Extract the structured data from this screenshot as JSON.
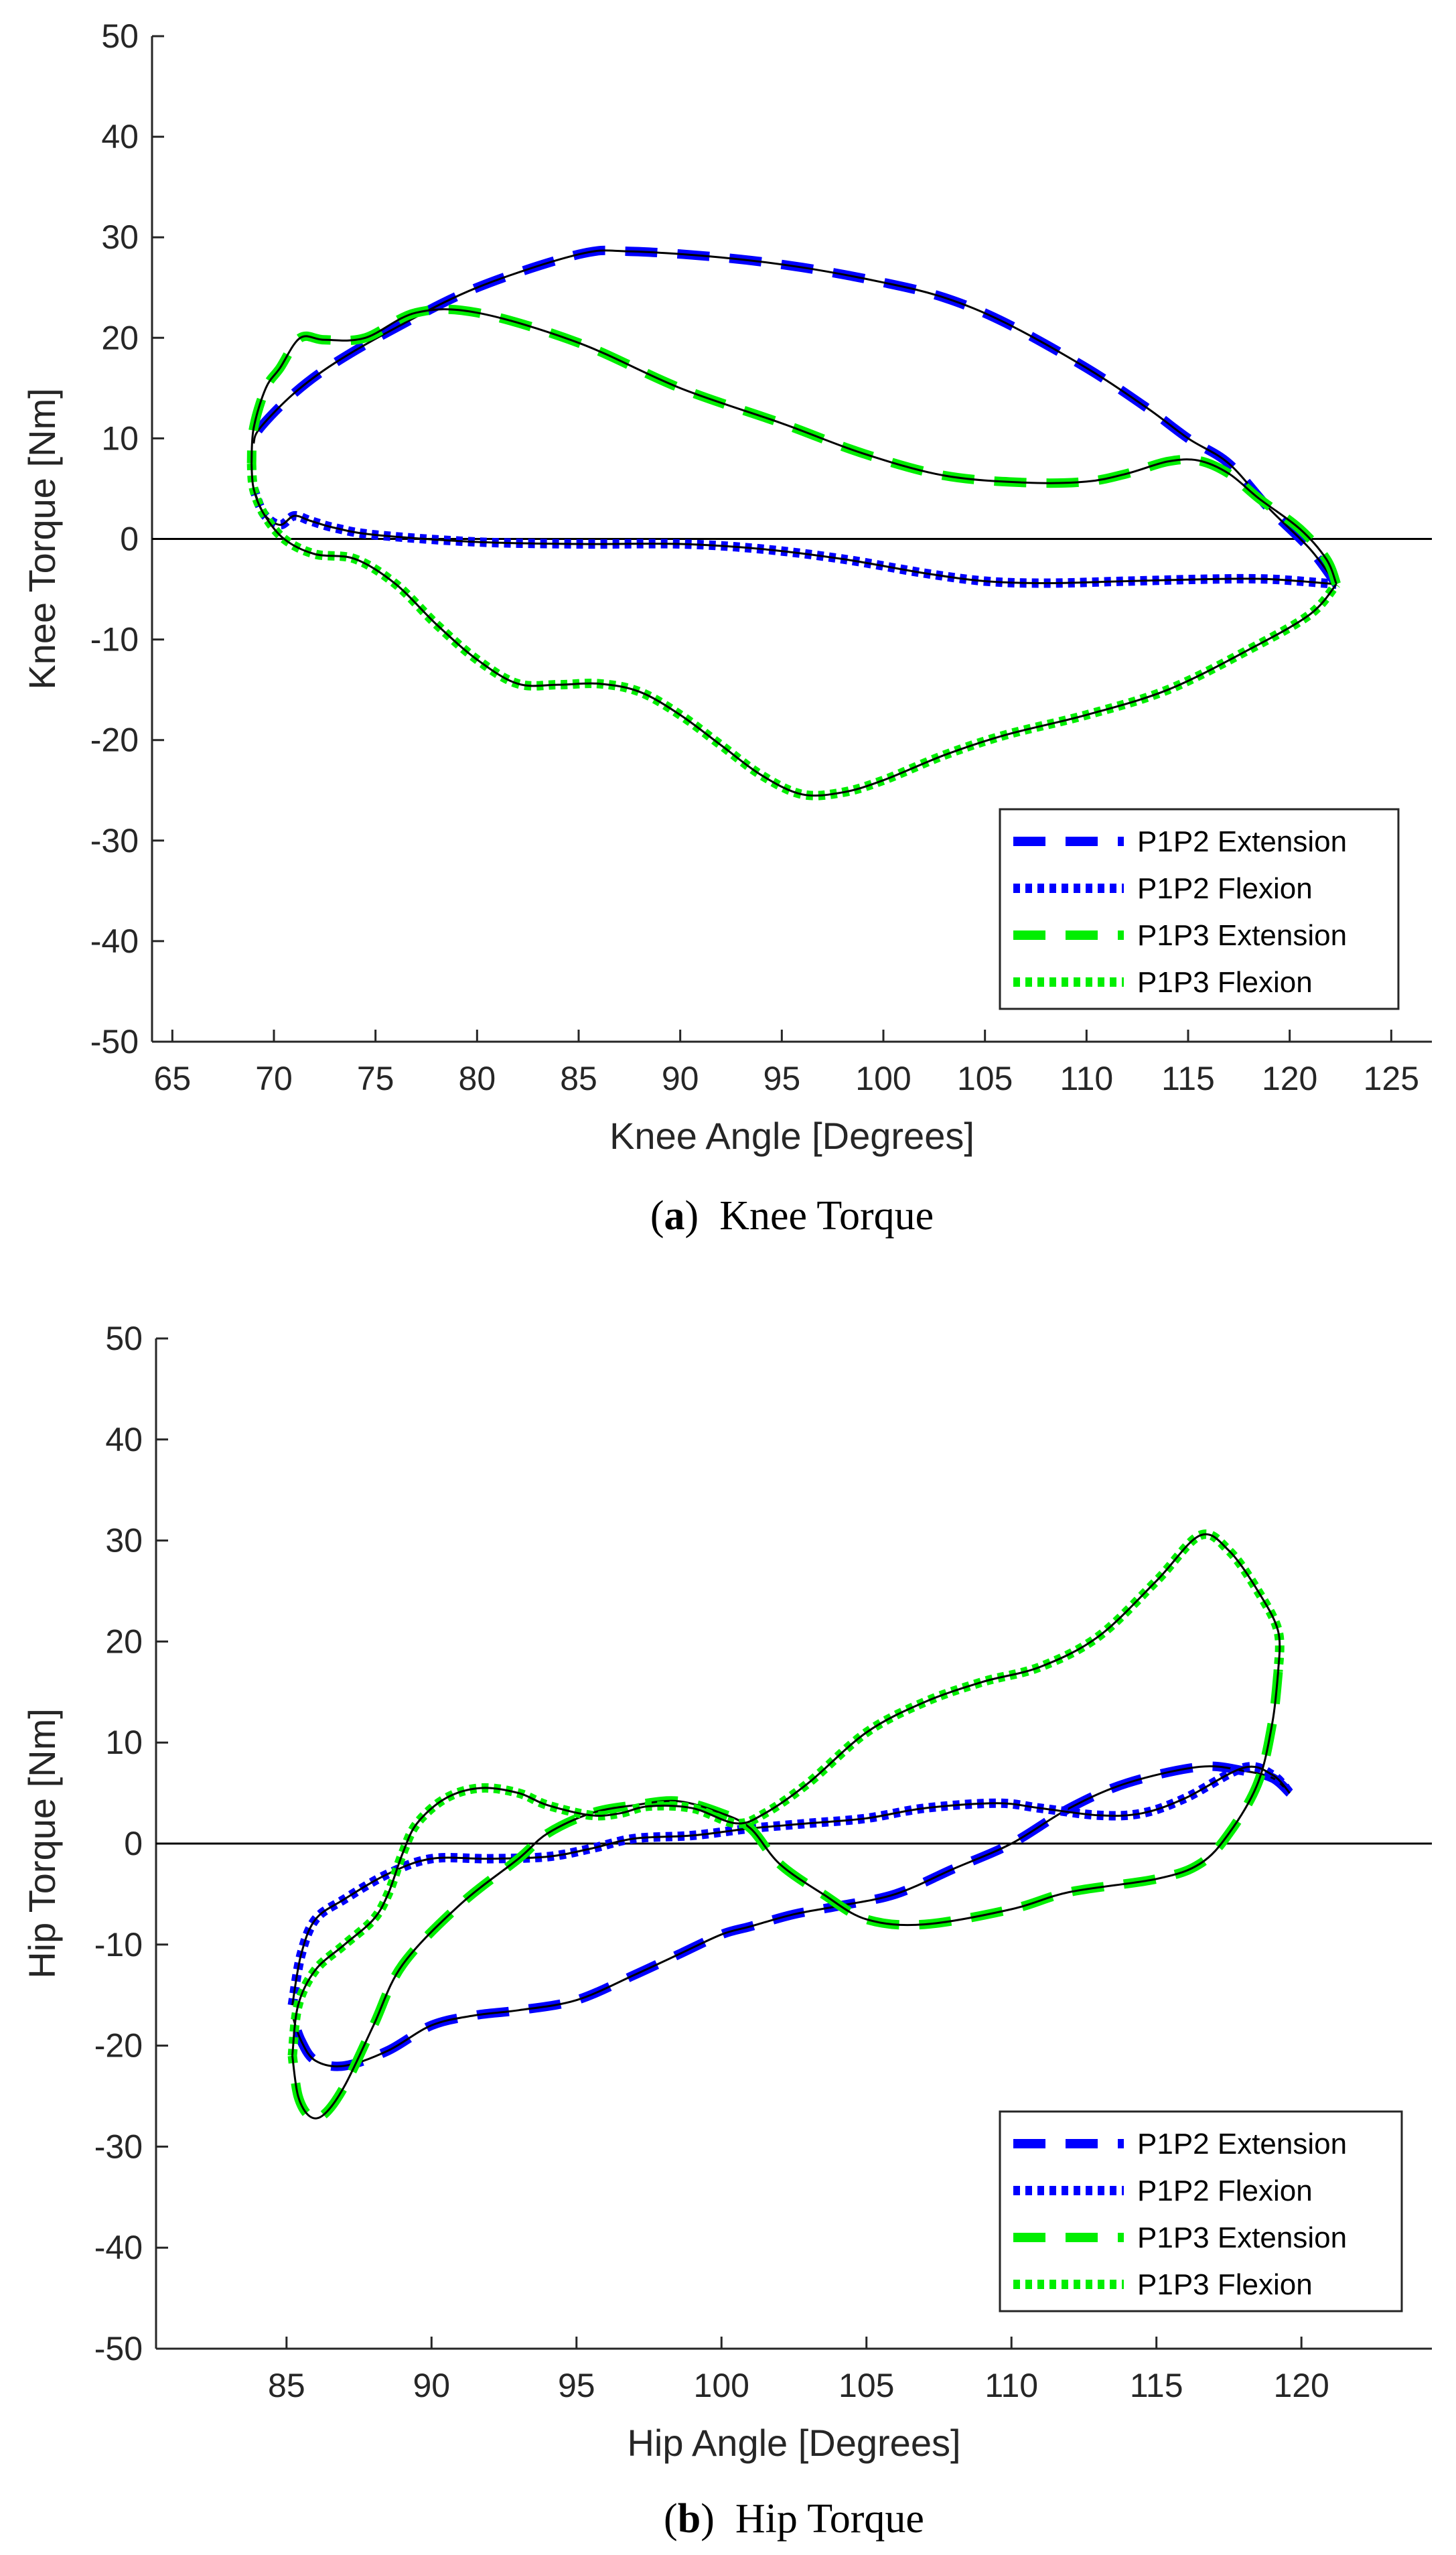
{
  "chart_data": [
    {
      "type": "line",
      "id": "knee",
      "caption_letter": "a",
      "caption_text": "Knee Torque",
      "xlabel": "Knee Angle [Degrees]",
      "ylabel": "Knee Torque [Nm]",
      "xlim": [
        64,
        127
      ],
      "ylim": [
        -50,
        50
      ],
      "xticks": [
        65,
        70,
        75,
        80,
        85,
        90,
        95,
        100,
        105,
        110,
        115,
        120,
        125
      ],
      "yticks": [
        -50,
        -40,
        -30,
        -20,
        -10,
        0,
        10,
        20,
        30,
        40,
        50
      ],
      "zero_line": true,
      "legend_position": "bottom-right",
      "legend": [
        "P1P2 Extension",
        "P1P2 Flexion",
        "P1P3 Extension",
        "P1P3 Flexion"
      ],
      "series": [
        {
          "name": "P1P2 Extension",
          "color": "#0000ff",
          "style": "dashed",
          "points": [
            [
              122.3,
              -4.5
            ],
            [
              121,
              -1
            ],
            [
              119,
              3
            ],
            [
              117,
              7.5
            ],
            [
              115,
              10
            ],
            [
              113,
              13
            ],
            [
              110,
              17
            ],
            [
              106,
              21.5
            ],
            [
              103,
              24
            ],
            [
              100,
              25.5
            ],
            [
              96,
              27
            ],
            [
              92,
              28
            ],
            [
              87.5,
              28.6
            ],
            [
              85,
              28.3
            ],
            [
              80,
              25
            ],
            [
              76,
              21
            ],
            [
              73,
              17.5
            ],
            [
              71,
              14.5
            ],
            [
              69.3,
              11
            ],
            [
              69,
              9.5
            ]
          ]
        },
        {
          "name": "P1P2 Flexion",
          "color": "#0000ff",
          "style": "dotted",
          "points": [
            [
              69,
              5
            ],
            [
              69.5,
              2.5
            ],
            [
              70.3,
              1.4
            ],
            [
              71,
              2.3
            ],
            [
              71.8,
              1.8
            ],
            [
              73,
              1.1
            ],
            [
              75,
              0.4
            ],
            [
              80,
              -0.3
            ],
            [
              85,
              -0.5
            ],
            [
              90,
              -0.5
            ],
            [
              94,
              -1
            ],
            [
              98,
              -2
            ],
            [
              102,
              -3.4
            ],
            [
              105,
              -4.2
            ],
            [
              108,
              -4.4
            ],
            [
              112,
              -4.2
            ],
            [
              116,
              -4
            ],
            [
              119,
              -4
            ],
            [
              122.3,
              -4.5
            ]
          ]
        },
        {
          "name": "P1P3 Extension",
          "color": "#00ee00",
          "style": "dashed",
          "points": [
            [
              122.3,
              -4.5
            ],
            [
              121.8,
              -2
            ],
            [
              120.5,
              1
            ],
            [
              118.5,
              4
            ],
            [
              117,
              6.5
            ],
            [
              115.5,
              7.8
            ],
            [
              114,
              7.7
            ],
            [
              112,
              6.5
            ],
            [
              110,
              5.7
            ],
            [
              107,
              5.6
            ],
            [
              103,
              6.3
            ],
            [
              99,
              8.5
            ],
            [
              95,
              11.5
            ],
            [
              90,
              15
            ],
            [
              85,
              19.5
            ],
            [
              80,
              22.5
            ],
            [
              77,
              22.5
            ],
            [
              74.5,
              20
            ],
            [
              72.5,
              19.8
            ],
            [
              71.3,
              20
            ],
            [
              70.3,
              17
            ],
            [
              69.6,
              15
            ],
            [
              69,
              11
            ],
            [
              68.9,
              7.5
            ]
          ]
        },
        {
          "name": "P1P3 Flexion",
          "color": "#00ee00",
          "style": "dotted",
          "points": [
            [
              68.9,
              7.5
            ],
            [
              69,
              5
            ],
            [
              69.5,
              2.5
            ],
            [
              70.5,
              0
            ],
            [
              72,
              -1.5
            ],
            [
              74,
              -2
            ],
            [
              76,
              -4.5
            ],
            [
              78,
              -8.5
            ],
            [
              80,
              -12
            ],
            [
              82,
              -14.4
            ],
            [
              84,
              -14.5
            ],
            [
              86,
              -14.4
            ],
            [
              88,
              -15.2
            ],
            [
              90,
              -17.5
            ],
            [
              92,
              -20.5
            ],
            [
              94,
              -23.5
            ],
            [
              96,
              -25.4
            ],
            [
              98,
              -25.2
            ],
            [
              100,
              -24
            ],
            [
              103,
              -21.5
            ],
            [
              106,
              -19.5
            ],
            [
              110,
              -17.5
            ],
            [
              114,
              -15
            ],
            [
              118,
              -11
            ],
            [
              121,
              -7.5
            ],
            [
              122.3,
              -4.5
            ]
          ]
        }
      ]
    },
    {
      "type": "line",
      "id": "hip",
      "caption_letter": "b",
      "caption_text": "Hip Torque",
      "xlabel": "Hip Angle [Degrees]",
      "ylabel": "Hip Torque [Nm]",
      "xlim": [
        80.5,
        124.5
      ],
      "ylim": [
        -50,
        50
      ],
      "xticks": [
        85,
        90,
        95,
        100,
        105,
        110,
        115,
        120
      ],
      "yticks": [
        -50,
        -40,
        -30,
        -20,
        -10,
        0,
        10,
        20,
        30,
        40,
        50
      ],
      "zero_line": true,
      "legend_position": "bottom-right",
      "legend": [
        "P1P2 Extension",
        "P1P2 Flexion",
        "P1P3 Extension",
        "P1P3 Flexion"
      ],
      "series": [
        {
          "name": "P1P2 Extension",
          "color": "#0000ff",
          "style": "dashed",
          "points": [
            [
              119.6,
              5
            ],
            [
              119,
              6.5
            ],
            [
              118,
              7.2
            ],
            [
              116.5,
              7.6
            ],
            [
              114,
              6
            ],
            [
              112,
              3.5
            ],
            [
              110,
              0
            ],
            [
              108,
              -2.5
            ],
            [
              106,
              -5
            ],
            [
              104,
              -6.2
            ],
            [
              102.5,
              -7
            ],
            [
              101,
              -8.2
            ],
            [
              100,
              -9
            ],
            [
              98.5,
              -11
            ],
            [
              97,
              -13
            ],
            [
              95,
              -15.5
            ],
            [
              93,
              -16.5
            ],
            [
              91.5,
              -17
            ],
            [
              90,
              -18
            ],
            [
              88.5,
              -20.5
            ],
            [
              87,
              -22
            ],
            [
              86,
              -21.5
            ],
            [
              85.5,
              -19.5
            ],
            [
              85.2,
              -17
            ]
          ]
        },
        {
          "name": "P1P2 Flexion",
          "color": "#0000ff",
          "style": "dotted",
          "points": [
            [
              85.2,
              -16
            ],
            [
              85.5,
              -11
            ],
            [
              86,
              -7.5
            ],
            [
              87,
              -5.5
            ],
            [
              88.5,
              -3
            ],
            [
              90,
              -1.5
            ],
            [
              92,
              -1.5
            ],
            [
              94,
              -1.3
            ],
            [
              95.5,
              -0.5
            ],
            [
              97,
              0.5
            ],
            [
              99,
              0.8
            ],
            [
              101,
              1.5
            ],
            [
              103,
              2
            ],
            [
              105,
              2.5
            ],
            [
              107,
              3.5
            ],
            [
              109.5,
              4
            ],
            [
              111,
              3.5
            ],
            [
              113,
              2.8
            ],
            [
              114.5,
              3
            ],
            [
              116,
              4.5
            ],
            [
              118,
              7.5
            ],
            [
              119,
              6.8
            ],
            [
              119.6,
              5
            ]
          ]
        },
        {
          "name": "P1P3 Extension",
          "color": "#00ee00",
          "style": "dashed",
          "points": [
            [
              119.2,
              17
            ],
            [
              119,
              12
            ],
            [
              118.5,
              6
            ],
            [
              117.5,
              1
            ],
            [
              116.5,
              -2
            ],
            [
              115,
              -3.5
            ],
            [
              112,
              -4.8
            ],
            [
              110,
              -6.5
            ],
            [
              107,
              -8
            ],
            [
              105,
              -7.5
            ],
            [
              103.5,
              -5
            ],
            [
              102,
              -2
            ],
            [
              101,
              1.5
            ],
            [
              100,
              3
            ],
            [
              98.5,
              4.2
            ],
            [
              97,
              3.8
            ],
            [
              95.5,
              3
            ],
            [
              94,
              1
            ],
            [
              93,
              -1.5
            ],
            [
              91,
              -6
            ],
            [
              89,
              -12
            ],
            [
              88,
              -18
            ],
            [
              87,
              -24
            ],
            [
              86.3,
              -26.8
            ],
            [
              85.8,
              -27
            ],
            [
              85.4,
              -25
            ],
            [
              85.2,
              -21
            ]
          ]
        },
        {
          "name": "P1P3 Flexion",
          "color": "#00ee00",
          "style": "dotted",
          "points": [
            [
              85.2,
              -21
            ],
            [
              85.4,
              -16
            ],
            [
              86,
              -12.5
            ],
            [
              87,
              -10
            ],
            [
              88,
              -7.5
            ],
            [
              88.5,
              -5
            ],
            [
              89,
              -1
            ],
            [
              89.5,
              2
            ],
            [
              90.5,
              4.5
            ],
            [
              91.7,
              5.5
            ],
            [
              93,
              5
            ],
            [
              94,
              3.8
            ],
            [
              95.5,
              2.8
            ],
            [
              96.5,
              3
            ],
            [
              97.5,
              3.7
            ],
            [
              99,
              3.5
            ],
            [
              100.5,
              2
            ],
            [
              101.5,
              3
            ],
            [
              103,
              6
            ],
            [
              105,
              11
            ],
            [
              107,
              14
            ],
            [
              109,
              16
            ],
            [
              111,
              17.5
            ],
            [
              113,
              20.5
            ],
            [
              115,
              26
            ],
            [
              116.5,
              30.5
            ],
            [
              117.5,
              29
            ],
            [
              118.5,
              25
            ],
            [
              119.2,
              21
            ],
            [
              119.2,
              17
            ]
          ]
        }
      ]
    }
  ]
}
